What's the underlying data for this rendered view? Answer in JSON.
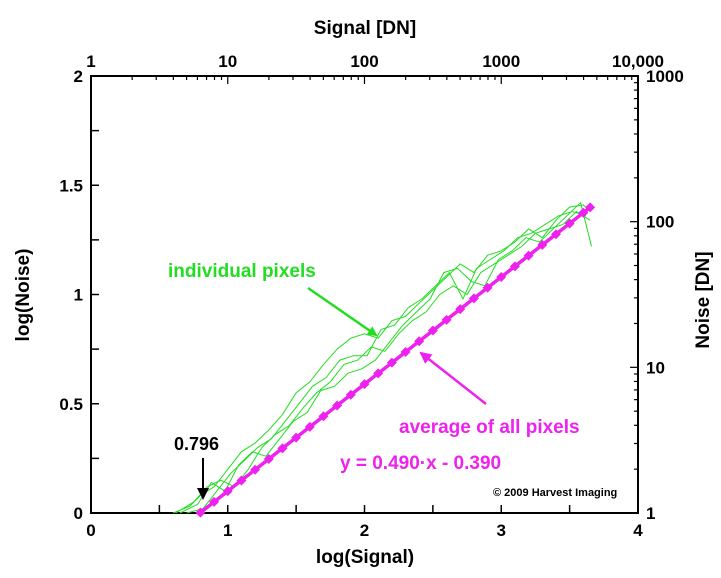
{
  "chart_data": {
    "type": "line",
    "title": "",
    "xlabel": "log(Signal)",
    "ylabel": "log(Noise)",
    "x2label": "Signal [DN]",
    "y2label": "Noise [DN]",
    "xlim": [
      0,
      4
    ],
    "ylim": [
      0,
      2
    ],
    "xticks": [
      "0",
      "1",
      "2",
      "3",
      "4"
    ],
    "yticks": [
      "0",
      "0.5",
      "1",
      "1.5",
      "2"
    ],
    "x2ticks": [
      {
        "value": 0,
        "label": "1"
      },
      {
        "value": 1,
        "label": "10"
      },
      {
        "value": 2,
        "label": "100"
      },
      {
        "value": 3,
        "label": "1000"
      },
      {
        "value": 4,
        "label": "10,000"
      }
    ],
    "y2ticks": [
      {
        "value": 0,
        "label": "1"
      },
      {
        "value": 1,
        "label": "10"
      },
      {
        "value": 2,
        "label": "100"
      },
      {
        "value": 3,
        "label": "1000"
      }
    ],
    "y2lim": [
      0,
      3
    ],
    "grid": false,
    "series": [
      {
        "name": "individual pixels",
        "color": "#22dd22",
        "lines": [
          [
            [
              0.6,
              0.0
            ],
            [
              0.72,
              0.03
            ],
            [
              0.8,
              0.08
            ],
            [
              0.9,
              0.12
            ],
            [
              1.0,
              0.2
            ],
            [
              1.1,
              0.28
            ],
            [
              1.2,
              0.32
            ],
            [
              1.3,
              0.38
            ],
            [
              1.4,
              0.45
            ],
            [
              1.5,
              0.55
            ],
            [
              1.6,
              0.6
            ],
            [
              1.7,
              0.68
            ],
            [
              1.8,
              0.75
            ],
            [
              1.9,
              0.8
            ],
            [
              2.0,
              0.82
            ],
            [
              2.1,
              0.8
            ],
            [
              2.2,
              0.88
            ],
            [
              2.3,
              0.9
            ],
            [
              2.4,
              0.96
            ],
            [
              2.5,
              1.02
            ],
            [
              2.6,
              1.08
            ],
            [
              2.7,
              1.14
            ],
            [
              2.8,
              1.1
            ],
            [
              2.9,
              1.18
            ],
            [
              3.0,
              1.2
            ],
            [
              3.1,
              1.24
            ],
            [
              3.2,
              1.3
            ],
            [
              3.3,
              1.26
            ],
            [
              3.4,
              1.34
            ],
            [
              3.5,
              1.4
            ],
            [
              3.6,
              1.41
            ],
            [
              3.65,
              1.38
            ]
          ],
          [
            [
              0.62,
              0.0
            ],
            [
              0.75,
              0.05
            ],
            [
              0.85,
              0.12
            ],
            [
              0.95,
              0.15
            ],
            [
              1.05,
              0.12
            ],
            [
              1.15,
              0.2
            ],
            [
              1.25,
              0.3
            ],
            [
              1.35,
              0.36
            ],
            [
              1.45,
              0.4
            ],
            [
              1.55,
              0.48
            ],
            [
              1.65,
              0.55
            ],
            [
              1.75,
              0.6
            ],
            [
              1.85,
              0.68
            ],
            [
              1.95,
              0.7
            ],
            [
              2.05,
              0.76
            ],
            [
              2.15,
              0.74
            ],
            [
              2.25,
              0.82
            ],
            [
              2.35,
              0.88
            ],
            [
              2.45,
              0.92
            ],
            [
              2.55,
              1.0
            ],
            [
              2.65,
              1.04
            ],
            [
              2.75,
              1.0
            ],
            [
              2.85,
              1.1
            ],
            [
              2.95,
              1.14
            ],
            [
              3.05,
              1.18
            ],
            [
              3.15,
              1.22
            ],
            [
              3.25,
              1.28
            ],
            [
              3.35,
              1.3
            ],
            [
              3.45,
              1.32
            ],
            [
              3.55,
              1.38
            ],
            [
              3.65,
              1.34
            ]
          ],
          [
            [
              0.65,
              0.0
            ],
            [
              0.78,
              0.04
            ],
            [
              0.88,
              0.14
            ],
            [
              0.98,
              0.1
            ],
            [
              1.08,
              0.22
            ],
            [
              1.18,
              0.28
            ],
            [
              1.28,
              0.26
            ],
            [
              1.38,
              0.34
            ],
            [
              1.48,
              0.42
            ],
            [
              1.58,
              0.46
            ],
            [
              1.68,
              0.56
            ],
            [
              1.78,
              0.58
            ],
            [
              1.88,
              0.64
            ],
            [
              1.98,
              0.66
            ],
            [
              2.08,
              0.7
            ],
            [
              2.18,
              0.78
            ],
            [
              2.28,
              0.86
            ],
            [
              2.38,
              0.92
            ],
            [
              2.48,
              0.98
            ],
            [
              2.58,
              1.1
            ],
            [
              2.68,
              1.12
            ],
            [
              2.78,
              1.06
            ],
            [
              2.88,
              1.04
            ],
            [
              2.98,
              1.16
            ],
            [
              3.08,
              1.2
            ],
            [
              3.18,
              1.26
            ],
            [
              3.28,
              1.24
            ],
            [
              3.38,
              1.3
            ],
            [
              3.48,
              1.36
            ],
            [
              3.58,
              1.42
            ],
            [
              3.66,
              1.22
            ]
          ],
          [
            [
              0.7,
              0.0
            ],
            [
              0.82,
              0.02
            ],
            [
              0.92,
              0.1
            ],
            [
              1.02,
              0.18
            ],
            [
              1.12,
              0.24
            ],
            [
              1.22,
              0.3
            ],
            [
              1.32,
              0.34
            ],
            [
              1.42,
              0.42
            ],
            [
              1.52,
              0.5
            ],
            [
              1.62,
              0.58
            ],
            [
              1.72,
              0.62
            ],
            [
              1.82,
              0.7
            ],
            [
              1.92,
              0.72
            ],
            [
              2.02,
              0.72
            ],
            [
              2.12,
              0.84
            ],
            [
              2.22,
              0.86
            ],
            [
              2.32,
              0.94
            ],
            [
              2.42,
              0.98
            ],
            [
              2.52,
              1.04
            ],
            [
              2.62,
              1.1
            ],
            [
              2.72,
              0.98
            ],
            [
              2.82,
              1.12
            ],
            [
              2.92,
              1.16
            ],
            [
              3.02,
              1.2
            ],
            [
              3.12,
              1.26
            ],
            [
              3.22,
              1.28
            ],
            [
              3.32,
              1.32
            ],
            [
              3.42,
              1.36
            ],
            [
              3.52,
              1.38
            ],
            [
              3.62,
              1.36
            ]
          ]
        ]
      },
      {
        "name": "average of all pixels",
        "color": "#ee22ee",
        "x": [
          0.8,
          0.9,
          1.0,
          1.1,
          1.2,
          1.3,
          1.4,
          1.5,
          1.6,
          1.7,
          1.8,
          1.9,
          2.0,
          2.1,
          2.2,
          2.3,
          2.4,
          2.5,
          2.6,
          2.7,
          2.8,
          2.9,
          3.0,
          3.1,
          3.2,
          3.3,
          3.4,
          3.5,
          3.6,
          3.65
        ],
        "y": [
          0.002,
          0.051,
          0.1,
          0.149,
          0.198,
          0.247,
          0.296,
          0.345,
          0.394,
          0.443,
          0.492,
          0.541,
          0.59,
          0.639,
          0.688,
          0.737,
          0.786,
          0.835,
          0.884,
          0.933,
          0.982,
          1.031,
          1.08,
          1.129,
          1.178,
          1.227,
          1.276,
          1.325,
          1.374,
          1.3985
        ]
      }
    ],
    "annotations": {
      "individual_pixels": "individual pixels",
      "average_of_all_pixels": "average of all pixels",
      "equation": "y = 0.490·x - 0.390",
      "x_intercept": "0.796",
      "x_intercept_value": 0.796,
      "copyright": "© 2009 Harvest Imaging"
    }
  }
}
